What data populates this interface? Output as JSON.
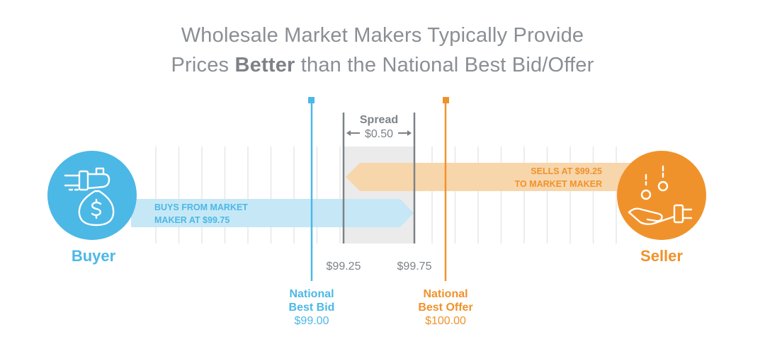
{
  "title": {
    "line1": "Wholesale Market Makers Typically Provide",
    "line2_prefix": "Prices ",
    "line2_bold": "Better",
    "line2_suffix": " than the National Best Bid/Offer"
  },
  "spread": {
    "label": "Spread",
    "value": "$0.50"
  },
  "buyer": {
    "label": "Buyer",
    "arrow_line1": "BUYS FROM MARKET",
    "arrow_line2": "MAKER AT $99.75",
    "icon": "money-bag-hand-icon"
  },
  "seller": {
    "label": "Seller",
    "arrow_line1": "SELLS AT $99.25",
    "arrow_line2": "TO MARKET MAKER",
    "icon": "coins-hand-icon"
  },
  "price_markers": {
    "low": "$99.25",
    "high": "$99.75"
  },
  "nbb": {
    "line1": "National",
    "line2": "Best Bid",
    "price": "$99.00"
  },
  "nbo": {
    "line1": "National",
    "line2": "Best Offer",
    "price": "$100.00"
  },
  "colors": {
    "blue": "#4cb8e6",
    "blue_light": "#c6e8f6",
    "orange": "#f0922b",
    "orange_light": "#f8d6ac",
    "gray": "#7d8287",
    "spread_band": "#ebebeb"
  }
}
